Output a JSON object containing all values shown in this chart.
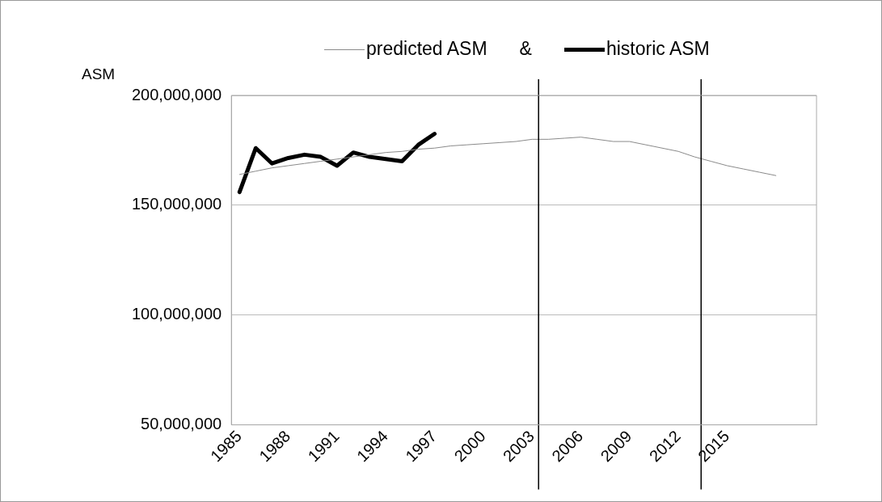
{
  "chart_data": {
    "type": "line",
    "ylabel": "ASM",
    "x": [
      1985,
      1986,
      1987,
      1988,
      1989,
      1990,
      1991,
      1992,
      1993,
      1994,
      1995,
      1996,
      1997,
      1998,
      1999,
      2000,
      2001,
      2002,
      2003,
      2004,
      2005,
      2006,
      2007,
      2008,
      2009,
      2010,
      2011,
      2012,
      2013,
      2014,
      2015,
      2016,
      2017,
      2018
    ],
    "series": [
      {
        "name": "predicted ASM",
        "color": "#8a8a8a",
        "values": [
          164000000,
          165500000,
          167000000,
          168000000,
          169000000,
          170000000,
          171000000,
          172000000,
          173000000,
          174000000,
          174500000,
          175500000,
          176000000,
          177000000,
          177500000,
          178000000,
          178500000,
          179000000,
          180000000,
          180000000,
          180500000,
          181000000,
          180000000,
          179000000,
          179000000,
          177500000,
          176000000,
          174500000,
          172000000,
          170000000,
          168000000,
          166500000,
          165000000,
          163500000
        ]
      },
      {
        "name": "historic ASM",
        "color": "#000000",
        "x": [
          1985,
          1986,
          1987,
          1988,
          1989,
          1990,
          1991,
          1992,
          1993,
          1994,
          1995,
          1996,
          1997
        ],
        "values": [
          156000000,
          176000000,
          169000000,
          171500000,
          173000000,
          172000000,
          168000000,
          174000000,
          172000000,
          171000000,
          170000000,
          177500000,
          182500000
        ]
      }
    ],
    "xlim": [
      1984.5,
      2020.5
    ],
    "xticks": [
      1985,
      1988,
      1991,
      1994,
      1997,
      2000,
      2003,
      2006,
      2009,
      2012,
      2015
    ],
    "ylim": [
      50000000,
      200000000
    ],
    "yticks": [
      {
        "value": 50000000,
        "label": "50,000,000"
      },
      {
        "value": 100000000,
        "label": "100,000,000"
      },
      {
        "value": 150000000,
        "label": "150,000,000"
      },
      {
        "value": 200000000,
        "label": "200,000,000"
      }
    ],
    "grid": "y",
    "legend": "top",
    "marker": "none",
    "ref_lines": [
      {
        "axis": "x",
        "value": 2003.4,
        "color": "#000000"
      },
      {
        "axis": "x",
        "value": 2013.4,
        "color": "#000000"
      }
    ],
    "annotations": [
      "&"
    ]
  }
}
